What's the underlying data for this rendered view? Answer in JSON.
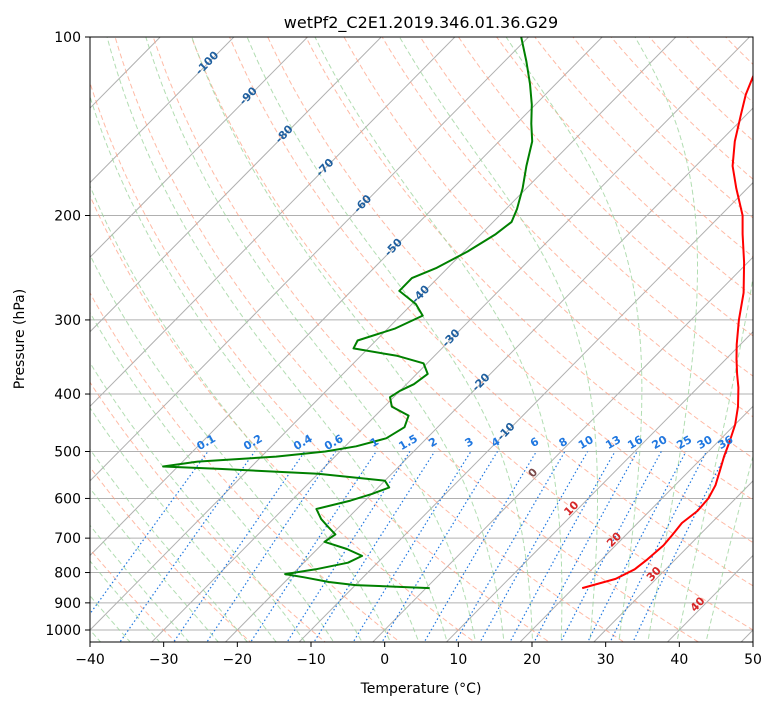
{
  "chart_data": {
    "type": "skewt",
    "title": "wetPf2_C2E1.2019.346.01.36.G29",
    "xlabel": "Temperature (°C)",
    "ylabel": "Pressure (hPa)",
    "xlim": [
      -40,
      50
    ],
    "ylim": [
      1050,
      100
    ],
    "y_scale": "log",
    "grid": true,
    "x_ticks": [
      "−40",
      "−30",
      "−20",
      "−10",
      "0",
      "10",
      "20",
      "30",
      "40",
      "50"
    ],
    "x_tick_values": [
      -40,
      -30,
      -20,
      -10,
      0,
      10,
      20,
      30,
      40,
      50
    ],
    "y_ticks": [
      "100",
      "200",
      "300",
      "400",
      "500",
      "600",
      "700",
      "800",
      "900",
      "1000"
    ],
    "y_tick_values": [
      100,
      200,
      300,
      400,
      500,
      600,
      700,
      800,
      900,
      1000
    ],
    "series": [
      {
        "color": "#ff0000",
        "points": [
          [
            850,
            21.2
          ],
          [
            820,
            24.5
          ],
          [
            790,
            25.8
          ],
          [
            760,
            26.2
          ],
          [
            720,
            26.5
          ],
          [
            690,
            26.3
          ],
          [
            660,
            26.0
          ],
          [
            630,
            26.5
          ],
          [
            600,
            26.3
          ],
          [
            570,
            25.5
          ],
          [
            540,
            24.2
          ],
          [
            510,
            22.8
          ],
          [
            480,
            21.5
          ],
          [
            450,
            20.0
          ],
          [
            420,
            18.0
          ],
          [
            390,
            15.5
          ],
          [
            370,
            13.5
          ],
          [
            350,
            11.5
          ],
          [
            330,
            9.5
          ],
          [
            300,
            6.5
          ],
          [
            270,
            3.5
          ],
          [
            240,
            -0.5
          ],
          [
            215,
            -4.5
          ],
          [
            200,
            -7.0
          ],
          [
            180,
            -11.5
          ],
          [
            165,
            -15.0
          ],
          [
            150,
            -18.0
          ],
          [
            135,
            -20.8
          ],
          [
            125,
            -22.8
          ],
          [
            115,
            -24.5
          ],
          [
            105,
            -25.5
          ],
          [
            100,
            -26.0
          ]
        ]
      },
      {
        "color": "#008000",
        "points": [
          [
            850,
            0.5
          ],
          [
            840,
            -10.0
          ],
          [
            830,
            -14.0
          ],
          [
            815,
            -18.0
          ],
          [
            805,
            -21.0
          ],
          [
            790,
            -17.5
          ],
          [
            770,
            -14.0
          ],
          [
            750,
            -13.0
          ],
          [
            730,
            -16.0
          ],
          [
            710,
            -20.0
          ],
          [
            690,
            -19.5
          ],
          [
            670,
            -21.5
          ],
          [
            650,
            -23.5
          ],
          [
            625,
            -25.5
          ],
          [
            605,
            -22.0
          ],
          [
            590,
            -20.0
          ],
          [
            575,
            -18.5
          ],
          [
            560,
            -20.0
          ],
          [
            545,
            -30.0
          ],
          [
            535,
            -44.0
          ],
          [
            530,
            -52.0
          ],
          [
            520,
            -48.0
          ],
          [
            510,
            -38.0
          ],
          [
            500,
            -32.0
          ],
          [
            490,
            -28.5
          ],
          [
            475,
            -25.5
          ],
          [
            455,
            -24.5
          ],
          [
            435,
            -25.5
          ],
          [
            420,
            -29.0
          ],
          [
            405,
            -30.5
          ],
          [
            395,
            -30.0
          ],
          [
            385,
            -29.0
          ],
          [
            370,
            -28.5
          ],
          [
            355,
            -30.5
          ],
          [
            345,
            -35.0
          ],
          [
            335,
            -42.0
          ],
          [
            325,
            -42.5
          ],
          [
            310,
            -39.0
          ],
          [
            295,
            -37.0
          ],
          [
            282,
            -39.5
          ],
          [
            268,
            -43.5
          ],
          [
            255,
            -43.5
          ],
          [
            245,
            -41.5
          ],
          [
            230,
            -39.5
          ],
          [
            215,
            -38.0
          ],
          [
            205,
            -37.5
          ],
          [
            195,
            -38.5
          ],
          [
            180,
            -40.5
          ],
          [
            165,
            -43.0
          ],
          [
            150,
            -45.5
          ],
          [
            140,
            -48.0
          ],
          [
            130,
            -50.5
          ],
          [
            120,
            -53.5
          ],
          [
            110,
            -57.0
          ],
          [
            100,
            -61.0
          ]
        ]
      }
    ],
    "dry_adiabat_labels": [
      "-100",
      "-90",
      "-80",
      "-70",
      "-60",
      "-50",
      "-40",
      "-30",
      "-20",
      "-10"
    ],
    "moist_adiabat_labels": [
      "0",
      "10",
      "20",
      "30",
      "40"
    ],
    "mixing_ratio_labels": [
      "0.1",
      "0.2",
      "0.4",
      "0.6",
      "1",
      "1.5",
      "2",
      "3",
      "4",
      "6",
      "8",
      "10",
      "13",
      "16",
      "20",
      "25",
      "30",
      "36"
    ],
    "colors": {
      "temperature": "#ff0000",
      "dewpoint": "#008000",
      "isotherm": "#b0b0b0",
      "dry_adiabat": "#ff9c7f",
      "moist_adiabat": "#9fd49f",
      "mixing_ratio": "#1f77e0",
      "dry_label": "#1f5f9f",
      "moist_label": "#d62728"
    }
  }
}
